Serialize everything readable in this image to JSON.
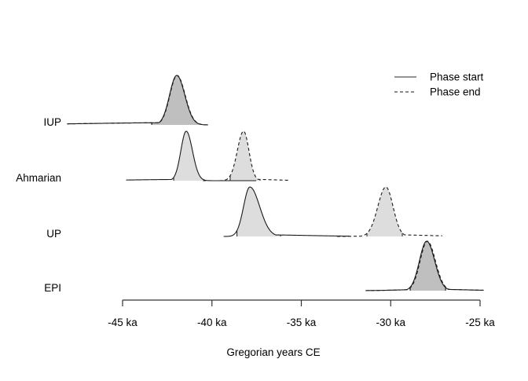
{
  "figure": {
    "background": "#ffffff"
  },
  "colors": {
    "curve": "#1a1a1a",
    "fill": "rgba(0,0,0,0.135)",
    "axis": "#333333",
    "legend_solid_line": "#555555",
    "legend_dashed_line": "#444444",
    "text": "#000000"
  },
  "chart_data": {
    "type": "area",
    "title": "",
    "xlabel": "Gregorian years CE",
    "x_unit": "ka",
    "axis_range": [
      -45,
      -25
    ],
    "xlim": [
      -48.2,
      -24.7
    ],
    "grid": false,
    "legend_position": "top-right",
    "x_ticks": [
      {
        "value": -45,
        "label": "-45 ka"
      },
      {
        "value": -40,
        "label": "-40 ka"
      },
      {
        "value": -35,
        "label": "-35 ka"
      },
      {
        "value": -30,
        "label": "-30 ka"
      },
      {
        "value": -25,
        "label": "-25 ka"
      }
    ],
    "legend": [
      {
        "label": "Phase start",
        "line": "solid"
      },
      {
        "label": "Phase end",
        "line": "dashed"
      }
    ],
    "phases": [
      {
        "name": "IUP",
        "densities": [
          {
            "kind": "start",
            "line": "solid",
            "peak_ka": -41.97,
            "sd_left": 0.4,
            "sd_right": 0.45,
            "tail_left": {
              "h": 0.045,
              "s": 5.0
            },
            "x_from": -48.1,
            "x_to": -40.2,
            "fill_from": -43.37,
            "fill_to": -40.52
          },
          {
            "kind": "end",
            "line": "dashed",
            "peak_ka": -41.95,
            "sd_left": 0.4,
            "sd_right": 0.45,
            "tail_left": {
              "h": 0.045,
              "s": 5.0
            },
            "x_from": -48.1,
            "x_to": -40.2,
            "fill_from": -43.37,
            "fill_to": -40.52
          }
        ]
      },
      {
        "name": "Ahmarian",
        "densities": [
          {
            "kind": "start",
            "line": "solid",
            "peak_ka": -41.44,
            "sd_left": 0.3,
            "sd_right": 0.35,
            "tail_left": {
              "h": 0.025,
              "s": 3.0
            },
            "x_from": -44.8,
            "x_to": -37.5,
            "fill_from": -42.14,
            "fill_to": -40.34
          },
          {
            "kind": "end",
            "line": "dashed",
            "peak_ka": -38.23,
            "sd_left": 0.35,
            "sd_right": 0.3,
            "tail_right": {
              "h": 0.03,
              "s": 1.6
            },
            "x_from": -40.5,
            "x_to": -35.7,
            "fill_from": -38.98,
            "fill_to": -37.31
          }
        ]
      },
      {
        "name": "UP",
        "densities": [
          {
            "kind": "start",
            "line": "solid",
            "peak_ka": -37.88,
            "sd_left": 0.35,
            "sd_right": 0.55,
            "tail_right": {
              "h": 0.035,
              "s": 3.0
            },
            "x_from": -39.35,
            "x_to": -32.3,
            "fill_from": -38.6,
            "fill_to": -36.16
          },
          {
            "kind": "end",
            "line": "dashed",
            "peak_ka": -30.27,
            "sd_left": 0.45,
            "sd_right": 0.4,
            "tail_left": {
              "h": 0.012,
              "s": 1.2
            },
            "tail_right": {
              "h": 0.035,
              "s": 2.2
            },
            "x_from": -33.0,
            "x_to": -27.1,
            "fill_from": -31.33,
            "fill_to": -29.35
          }
        ]
      },
      {
        "name": "EPI",
        "densities": [
          {
            "kind": "start",
            "line": "solid",
            "peak_ka": -27.99,
            "sd_left": 0.4,
            "sd_right": 0.45,
            "tail_left": {
              "h": 0.025,
              "s": 1.5
            },
            "tail_right": {
              "h": 0.03,
              "s": 2.0
            },
            "x_from": -31.4,
            "x_to": -24.8,
            "fill_from": -28.91,
            "fill_to": -26.93
          },
          {
            "kind": "end",
            "line": "dashed",
            "peak_ka": -27.95,
            "sd_left": 0.4,
            "sd_right": 0.45,
            "tail_left": {
              "h": 0.025,
              "s": 1.5
            },
            "tail_right": {
              "h": 0.03,
              "s": 2.0
            },
            "x_from": -31.4,
            "x_to": -24.8,
            "fill_from": -28.91,
            "fill_to": -26.93
          }
        ]
      }
    ]
  }
}
